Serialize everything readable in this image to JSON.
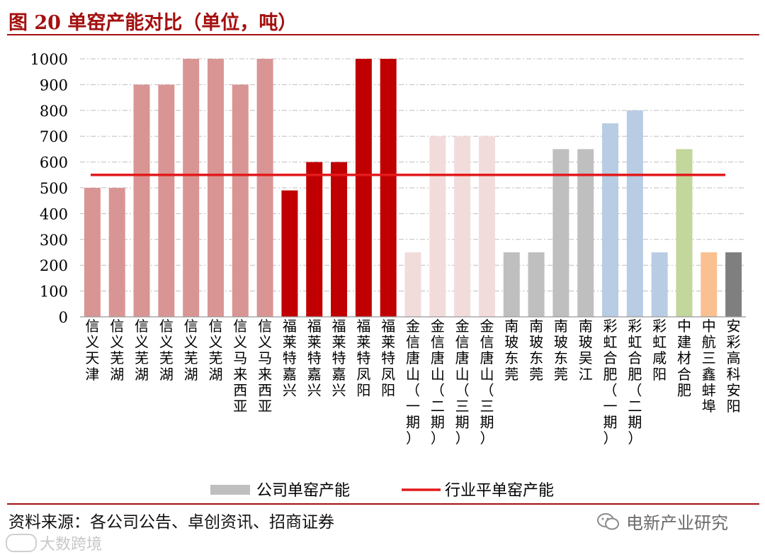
{
  "header": {
    "title": "图 20 单窑产能对比（单位，吨）"
  },
  "footer": {
    "source": "资料来源：各公司公告、卓创资讯、招商证券",
    "brand": "电新产业研究",
    "watermark": "大数跨境"
  },
  "chart_data": {
    "type": "bar",
    "title": "图 20 单窑产能对比（单位，吨）",
    "ylim": [
      0,
      1000
    ],
    "yticks": [
      0,
      100,
      200,
      300,
      400,
      500,
      600,
      700,
      800,
      900,
      1000
    ],
    "grid": true,
    "legend_position": "bottom",
    "categories": [
      "信义天津",
      "信义芜湖",
      "信义芜湖",
      "信义芜湖",
      "信义芜湖",
      "信义芜湖",
      "信义马来西亚",
      "信义马来西亚",
      "福莱特嘉兴",
      "福莱特嘉兴",
      "福莱特嘉兴",
      "福莱特凤阳",
      "福莱特凤阳",
      "金信唐山（一期）",
      "金信唐山（二期）",
      "金信唐山（三期）",
      "金信唐山（三期）",
      "南玻东莞",
      "南玻东莞",
      "南玻东莞",
      "南玻吴江",
      "彩虹合肥（一期）",
      "彩虹合肥（二期）",
      "彩虹咸阳",
      "中建材合肥",
      "中航三鑫蚌埠",
      "安彩高科安阳"
    ],
    "values": [
      500,
      500,
      900,
      900,
      1000,
      1000,
      900,
      1000,
      490,
      600,
      600,
      1000,
      1000,
      250,
      700,
      700,
      700,
      250,
      250,
      650,
      650,
      750,
      800,
      250,
      650,
      250,
      250
    ],
    "bar_colors": [
      "#d99594",
      "#d99594",
      "#d99594",
      "#d99594",
      "#d99594",
      "#d99594",
      "#d99594",
      "#d99594",
      "#c00000",
      "#c00000",
      "#c00000",
      "#c00000",
      "#c00000",
      "#f2dcdb",
      "#f2dcdb",
      "#f2dcdb",
      "#f2dcdb",
      "#bfbfbf",
      "#bfbfbf",
      "#bfbfbf",
      "#bfbfbf",
      "#b8cce4",
      "#b8cce4",
      "#b8cce4",
      "#c3d69b",
      "#fac090",
      "#7f7f7f"
    ],
    "reference_line": {
      "name": "行业平单窑产能",
      "value": 550,
      "color": "#e31a1c"
    },
    "legend": [
      {
        "label": "公司单窑产能",
        "kind": "bar",
        "color": "#bfbfbf"
      },
      {
        "label": "行业平单窑产能",
        "kind": "line",
        "color": "#e31a1c"
      }
    ]
  }
}
